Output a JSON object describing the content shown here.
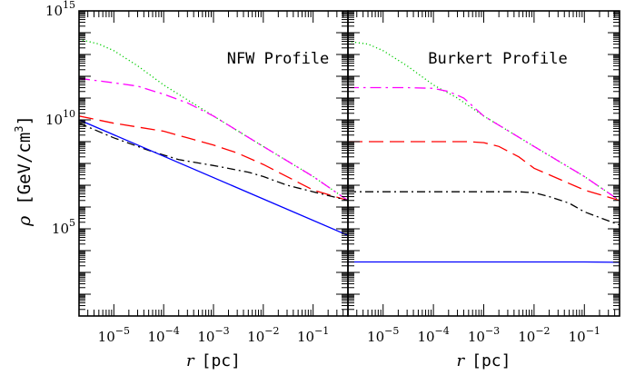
{
  "figure": {
    "y_label_sym": "ρ",
    "y_label_units": "[GeV/cm",
    "y_label_sup": "3",
    "y_label_close": "]"
  },
  "chart_data": [
    {
      "type": "line",
      "title": "NFW Profile",
      "xlabel": "r [pc]",
      "ylabel": "ρ [GeV/cm3]",
      "xscale": "log",
      "yscale": "log",
      "xlim": [
        2e-06,
        0.5
      ],
      "ylim": [
        10,
        1000000000000000.0
      ],
      "x_tick_labels": [
        "10^-5",
        "10^-4",
        "10^-3",
        "10^-2",
        "10^-1"
      ],
      "y_tick_labels": [
        "10^5",
        "10^10",
        "10^15"
      ],
      "grid": false,
      "series": [
        {
          "color": "#00cc00",
          "dash": "dotted",
          "x": [
            2e-06,
            5e-06,
            1e-05,
            3e-05,
            0.0001,
            0.001,
            0.01,
            0.1,
            0.5
          ],
          "y": [
            50000000000000.0,
            30000000000000.0,
            15000000000000.0,
            3000000000000.0,
            400000000000.0,
            15000000000.0,
            600000000.0,
            25000000.0,
            2000000.0
          ]
        },
        {
          "color": "#ff00ff",
          "dash": "dashdot-long",
          "x": [
            2e-06,
            1e-05,
            3e-05,
            0.0001,
            0.0003,
            0.001,
            0.01,
            0.1,
            0.5
          ],
          "y": [
            800000000000.0,
            500000000000.0,
            350000000000.0,
            150000000000.0,
            60000000000.0,
            15000000000.0,
            600000000.0,
            25000000.0,
            2000000.0
          ]
        },
        {
          "color": "#ff0000",
          "dash": "long-dash",
          "x": [
            2e-06,
            1e-05,
            0.0001,
            0.0003,
            0.001,
            0.003,
            0.01,
            0.1,
            0.5
          ],
          "y": [
            15000000000.0,
            7000000000.0,
            3000000000.0,
            1500000000.0,
            700000000.0,
            300000000.0,
            90000000.0,
            6000000.0,
            2000000.0
          ]
        },
        {
          "color": "#000000",
          "dash": "dashdot",
          "x": [
            2e-06,
            1e-05,
            5e-05,
            0.0002,
            0.001,
            0.005,
            0.01,
            0.03,
            0.1,
            0.5
          ],
          "y": [
            7000000000.0,
            1500000000.0,
            400000000.0,
            150000000.0,
            80000000.0,
            40000000.0,
            25000000.0,
            10000000.0,
            5000000.0,
            2000000.0
          ]
        },
        {
          "color": "#0000ff",
          "dash": "solid",
          "x": [
            2e-06,
            0.5
          ],
          "y": [
            10000000000.0,
            50000.0
          ]
        }
      ]
    },
    {
      "type": "line",
      "title": "Burkert Profile",
      "xlabel": "r [pc]",
      "ylabel": "ρ [GeV/cm3]",
      "xscale": "log",
      "yscale": "log",
      "xlim": [
        2e-06,
        0.5
      ],
      "ylim": [
        10,
        1000000000000000.0
      ],
      "x_tick_labels": [
        "10^-5",
        "10^-4",
        "10^-3",
        "10^-2",
        "10^-1"
      ],
      "y_tick_labels": [
        "10^5",
        "10^10",
        "10^15"
      ],
      "grid": false,
      "series": [
        {
          "color": "#00cc00",
          "dash": "dotted",
          "x": [
            2e-06,
            5e-06,
            1e-05,
            3e-05,
            0.0001,
            0.0003,
            0.001,
            0.01,
            0.1,
            0.5
          ],
          "y": [
            40000000000000.0,
            30000000000000.0,
            15000000000000.0,
            3000000000000.0,
            400000000000.0,
            100000000000.0,
            15000000000.0,
            600000000.0,
            25000000.0,
            2000000.0
          ]
        },
        {
          "color": "#ff00ff",
          "dash": "dashdot-long",
          "x": [
            2e-06,
            3e-05,
            0.0001,
            0.0002,
            0.0004,
            0.001,
            0.01,
            0.1,
            0.5
          ],
          "y": [
            300000000000.0,
            300000000000.0,
            280000000000.0,
            200000000000.0,
            100000000000.0,
            15000000000.0,
            600000000.0,
            25000000.0,
            2000000.0
          ]
        },
        {
          "color": "#ff0000",
          "dash": "long-dash",
          "x": [
            2e-06,
            0.0005,
            0.001,
            0.002,
            0.005,
            0.01,
            0.1,
            0.5
          ],
          "y": [
            1000000000.0,
            1000000000.0,
            900000000.0,
            600000000.0,
            200000000.0,
            60000000.0,
            6000000.0,
            2000000.0
          ]
        },
        {
          "color": "#000000",
          "dash": "dashdot",
          "x": [
            2e-06,
            0.005,
            0.01,
            0.02,
            0.05,
            0.1,
            0.5
          ],
          "y": [
            5000000.0,
            5000000.0,
            4500000.0,
            3000000.0,
            1500000.0,
            600000.0,
            150000.0
          ]
        },
        {
          "color": "#0000ff",
          "dash": "solid",
          "x": [
            2e-06,
            0.1,
            0.5
          ],
          "y": [
            3000.0,
            3000.0,
            2900.0
          ]
        }
      ]
    }
  ]
}
